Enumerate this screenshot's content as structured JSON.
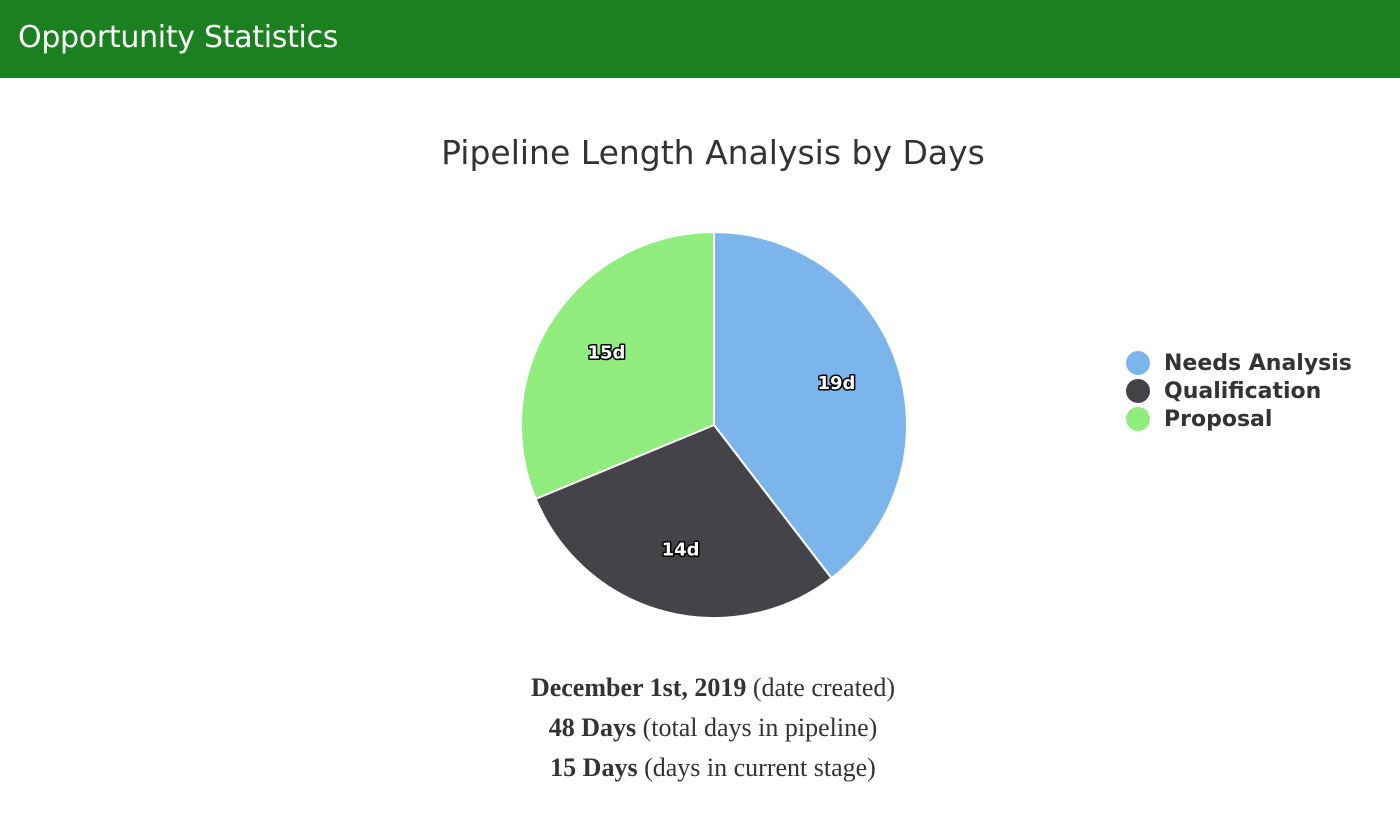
{
  "header": {
    "title": "Opportunity Statistics",
    "background_color": "#1b801f"
  },
  "chart_data": {
    "type": "pie",
    "title": "Pipeline Length Analysis by Days",
    "categories": [
      "Needs Analysis",
      "Qualification",
      "Proposal"
    ],
    "values": [
      19,
      14,
      15
    ],
    "labels": [
      "19d",
      "14d",
      "15d"
    ],
    "colors": [
      "#7cb5ec",
      "#434348",
      "#90ed7d"
    ],
    "legend_position": "right"
  },
  "summary": {
    "date_created_value": "December 1st, 2019",
    "date_created_note": "(date created)",
    "total_days_value": "48 Days",
    "total_days_note": "(total days in pipeline)",
    "current_stage_value": "15 Days",
    "current_stage_note": "(days in current stage)"
  }
}
